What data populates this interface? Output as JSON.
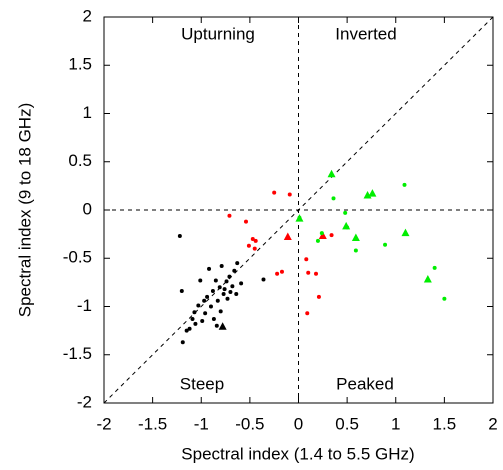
{
  "chart_data": {
    "type": "scatter",
    "x_label": "Spectral index (1.4 to 5.5 GHz)",
    "y_label": "Spectral index (9 to 18 GHz)",
    "annotations": [
      "Upturning",
      "Inverted",
      "Steep",
      "Peaked"
    ],
    "xlim": [
      -2,
      2
    ],
    "ylim": [
      -2,
      2
    ],
    "xticks": [
      -2,
      -1.5,
      -1,
      -0.5,
      0,
      0.5,
      1,
      1.5,
      2
    ],
    "yticks": [
      -2,
      -1.5,
      -1,
      -0.5,
      0,
      0.5,
      1,
      1.5,
      2
    ],
    "grid": false,
    "series": [
      {
        "color": "#000000",
        "marker": "circle",
        "x": [
          -1.22,
          -1.2,
          -1.19,
          -1.15,
          -1.12,
          -1.09,
          -1.07,
          -1.06,
          -1.03,
          -1.01,
          -0.99,
          -0.97,
          -0.96,
          -0.94,
          -0.92,
          -0.9,
          -0.88,
          -0.87,
          -0.85,
          -0.84,
          -0.83,
          -0.81,
          -0.8,
          -0.79,
          -0.77,
          -0.76,
          -0.74,
          -0.73,
          -0.71,
          -0.7,
          -0.68,
          -0.66,
          -0.64,
          -0.63,
          -0.59,
          -0.36
        ],
        "y": [
          -0.27,
          -0.84,
          -1.37,
          -1.25,
          -1.23,
          -1.13,
          -1.06,
          -1.18,
          -0.99,
          -0.73,
          -1.15,
          -0.94,
          -1.07,
          -0.9,
          -0.61,
          -1.0,
          -0.84,
          -1.13,
          -0.73,
          -1.2,
          -0.94,
          -0.8,
          -1.05,
          -0.58,
          -0.87,
          -0.82,
          -0.74,
          -0.92,
          -0.69,
          -0.85,
          -0.79,
          -0.63,
          -0.87,
          -0.55,
          -0.76,
          -0.72
        ]
      },
      {
        "color": "#000000",
        "marker": "triangle",
        "x": [
          -0.78
        ],
        "y": [
          -1.21
        ]
      },
      {
        "color": "#ff0000",
        "marker": "circle",
        "x": [
          -0.71,
          -0.54,
          -0.51,
          -0.47,
          -0.45,
          -0.44,
          -0.25,
          -0.22,
          -0.17,
          -0.09,
          0.08,
          0.1,
          0.09,
          0.18,
          0.21,
          0.34
        ],
        "y": [
          -0.06,
          -0.12,
          -0.37,
          -0.3,
          -0.4,
          -0.32,
          0.18,
          -0.66,
          -0.64,
          0.16,
          -0.51,
          -0.65,
          -1.07,
          -0.66,
          -0.9,
          -0.26
        ]
      },
      {
        "color": "#ff0000",
        "marker": "triangle",
        "x": [
          -0.11,
          0.25
        ],
        "y": [
          -0.28,
          -0.27
        ]
      },
      {
        "color": "#00ee00",
        "marker": "circle",
        "x": [
          0.01,
          0.2,
          0.24,
          0.36,
          0.48,
          0.5,
          0.59,
          0.89,
          1.09,
          1.4,
          1.5
        ],
        "y": [
          -0.08,
          -0.32,
          -0.24,
          0.12,
          -0.03,
          -0.18,
          -0.42,
          -0.36,
          0.26,
          -0.6,
          -0.92
        ]
      },
      {
        "color": "#00ee00",
        "marker": "triangle",
        "x": [
          0.01,
          0.34,
          0.49,
          0.59,
          0.71,
          0.76,
          1.1,
          1.33
        ],
        "y": [
          -0.09,
          0.37,
          -0.17,
          -0.29,
          0.15,
          0.17,
          -0.24,
          -0.72
        ]
      }
    ]
  }
}
